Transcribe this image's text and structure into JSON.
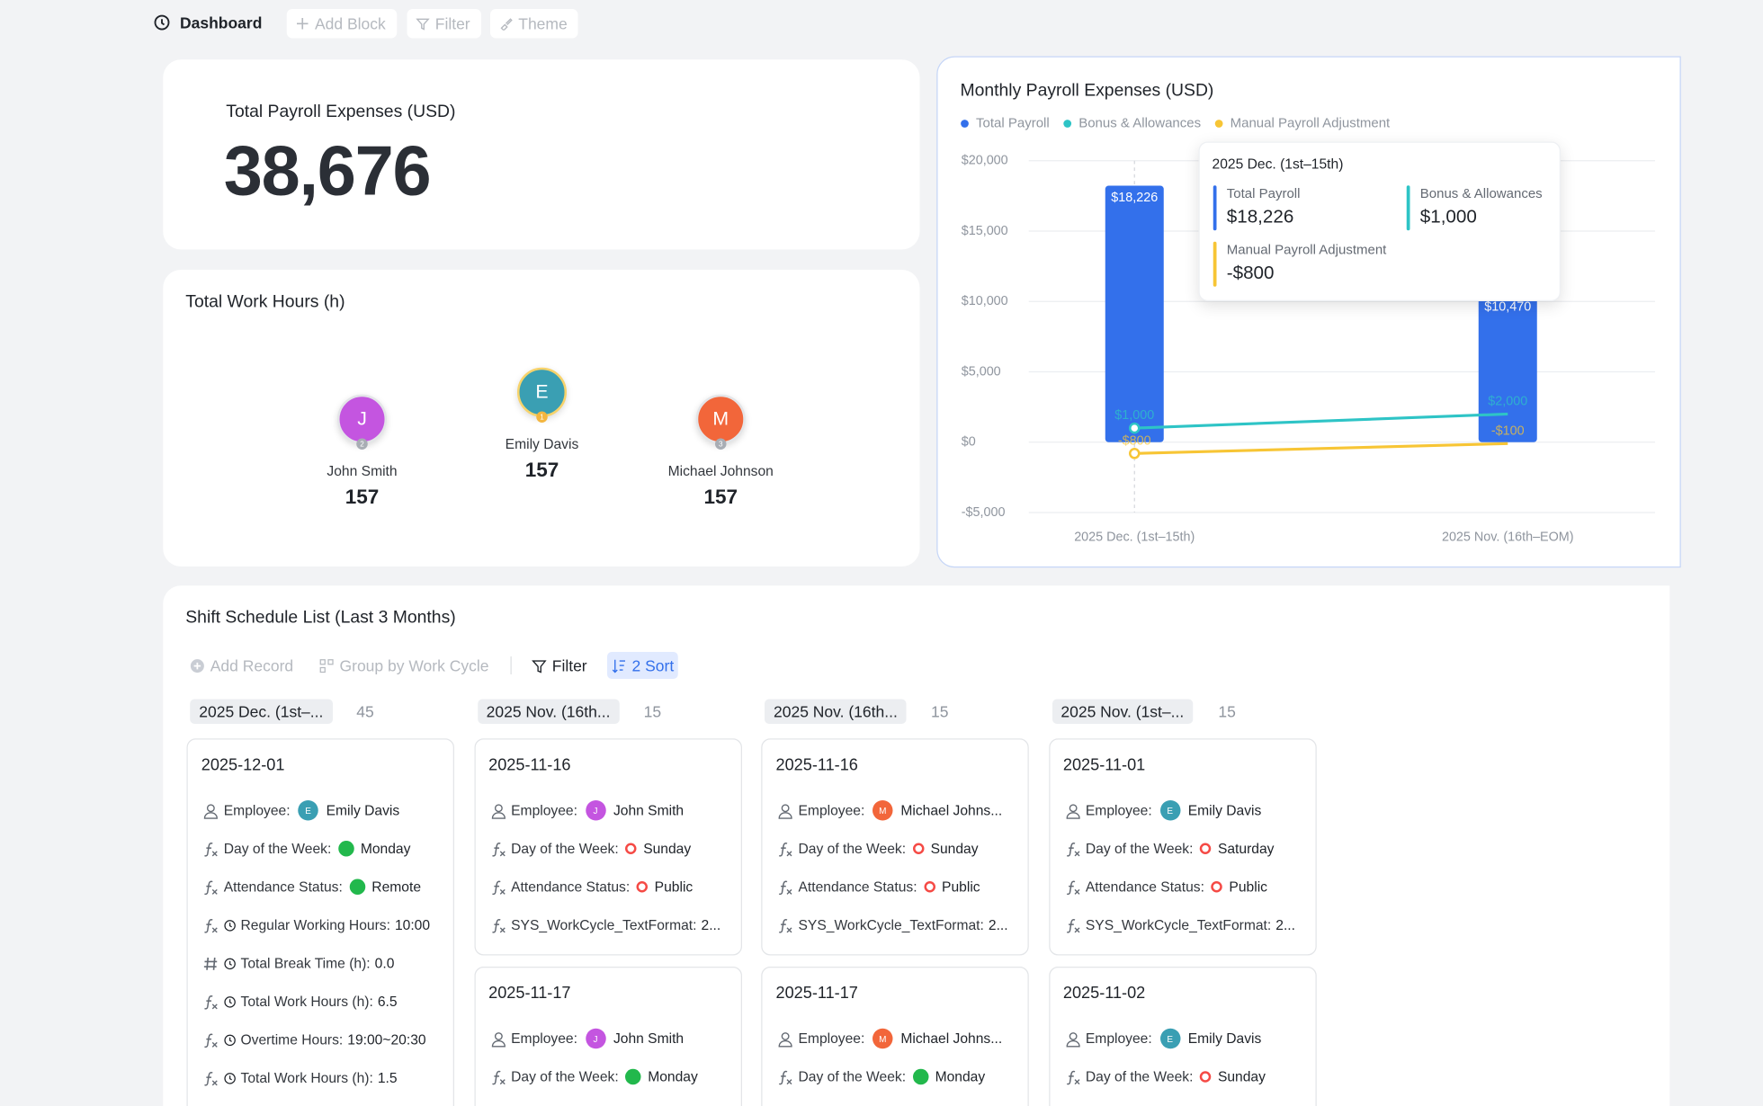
{
  "toolbar": {
    "title": "Dashboard",
    "buttons": [
      "Add Block",
      "Filter",
      "Theme"
    ]
  },
  "kpi": {
    "label": "Total Payroll Expenses (USD)",
    "value": "38,676"
  },
  "work_hours": {
    "title": "Total Work Hours (h)",
    "people": [
      {
        "initial": "J",
        "rank": "2",
        "name": "John Smith",
        "hours": 157,
        "color": "#c455e0"
      },
      {
        "initial": "E",
        "rank": "1",
        "name": "Emily Davis",
        "hours": 157,
        "color": "#3a9fb3"
      },
      {
        "initial": "M",
        "rank": "3",
        "name": "Michael Johnson",
        "hours": 157,
        "color": "#f2663a"
      }
    ]
  },
  "chart_data": {
    "type": "bar",
    "title": "Monthly Payroll Expenses (USD)",
    "categories": [
      "2025 Dec. (1st–15th)",
      "2025 Nov. (16th–EOM)"
    ],
    "series": [
      {
        "name": "Total Payroll",
        "type": "bar",
        "color": "#3370eb",
        "values": [
          18226,
          10470
        ],
        "value_labels": [
          "$18,226",
          "$10,470"
        ]
      },
      {
        "name": "Bonus & Allowances",
        "type": "line",
        "color": "#2ec4c6",
        "values": [
          1000,
          2000
        ],
        "value_labels": [
          "$1,000",
          "$2,000"
        ]
      },
      {
        "name": "Manual Payroll Adjustment",
        "type": "line",
        "color": "#f7c535",
        "values": [
          -800,
          -100
        ],
        "value_labels": [
          "-$800",
          "-$100"
        ]
      }
    ],
    "ylim": [
      -5000,
      20000
    ],
    "yticks": [
      {
        "value": -5000,
        "label": "-$5,000"
      },
      {
        "value": 0,
        "label": "$0"
      },
      {
        "value": 5000,
        "label": "$5,000"
      },
      {
        "value": 10000,
        "label": "$10,000"
      },
      {
        "value": 15000,
        "label": "$15,000"
      },
      {
        "value": 20000,
        "label": "$20,000"
      }
    ],
    "grid": true,
    "legend": "top-left"
  },
  "schedule": {
    "title": "Shift Schedule List (Last 3 Months)",
    "toolbar": [
      "Add Record",
      "Group by Work Cycle",
      "Filter",
      "2 Sort"
    ],
    "groups": [
      {
        "label": "2025 Dec. (1st–...",
        "count": 45,
        "cards": [
          {
            "date": "2025-12-01",
            "fields": [
              {
                "icon": "person",
                "label": "Employee:",
                "avatar": "E",
                "avatar_color": "#3a9fb3",
                "value": "Emily Davis"
              },
              {
                "icon": "fx",
                "label": "Day of the Week:",
                "dot": "#22b84c",
                "dot_filled": true,
                "value": "Monday"
              },
              {
                "icon": "fx",
                "label": "Attendance Status:",
                "dot": "#22b84c",
                "dot_filled": true,
                "value": "Remote"
              },
              {
                "icon": "fx",
                "clock": true,
                "label": "Regular Working Hours:",
                "value": "10:00"
              },
              {
                "icon": "hash",
                "clock": true,
                "label": "Total Break Time (h):",
                "value": "0.0"
              },
              {
                "icon": "fx",
                "clock": true,
                "label": "Total Work Hours (h):",
                "value": "6.5"
              },
              {
                "icon": "fx",
                "clock": true,
                "label": "Overtime Hours:",
                "value": "19:00~20:30"
              },
              {
                "icon": "fx",
                "clock": true,
                "label": "Total Work Hours (h):",
                "value": "1.5"
              }
            ]
          }
        ]
      },
      {
        "label": "2025 Nov. (16th...",
        "count": 15,
        "cards": [
          {
            "date": "2025-11-16",
            "fields": [
              {
                "icon": "person",
                "label": "Employee:",
                "avatar": "J",
                "avatar_color": "#c455e0",
                "value": "John Smith"
              },
              {
                "icon": "fx",
                "label": "Day of the Week:",
                "dot": "#f54a45",
                "dot_filled": false,
                "value": "Sunday"
              },
              {
                "icon": "fx",
                "label": "Attendance Status:",
                "dot": "#f54a45",
                "dot_filled": false,
                "value": "Public"
              },
              {
                "icon": "fx",
                "label": "SYS_WorkCycle_TextFormat:",
                "value": "2..."
              }
            ]
          },
          {
            "date": "2025-11-17",
            "fields": [
              {
                "icon": "person",
                "label": "Employee:",
                "avatar": "J",
                "avatar_color": "#c455e0",
                "value": "John Smith"
              },
              {
                "icon": "fx",
                "label": "Day of the Week:",
                "dot": "#22b84c",
                "dot_filled": true,
                "value": "Monday"
              }
            ]
          }
        ]
      },
      {
        "label": "2025 Nov. (16th...",
        "count": 15,
        "cards": [
          {
            "date": "2025-11-16",
            "fields": [
              {
                "icon": "person",
                "label": "Employee:",
                "avatar": "M",
                "avatar_color": "#f2663a",
                "value": "Michael Johns..."
              },
              {
                "icon": "fx",
                "label": "Day of the Week:",
                "dot": "#f54a45",
                "dot_filled": false,
                "value": "Sunday"
              },
              {
                "icon": "fx",
                "label": "Attendance Status:",
                "dot": "#f54a45",
                "dot_filled": false,
                "value": "Public"
              },
              {
                "icon": "fx",
                "label": "SYS_WorkCycle_TextFormat:",
                "value": "2..."
              }
            ]
          },
          {
            "date": "2025-11-17",
            "fields": [
              {
                "icon": "person",
                "label": "Employee:",
                "avatar": "M",
                "avatar_color": "#f2663a",
                "value": "Michael Johns..."
              },
              {
                "icon": "fx",
                "label": "Day of the Week:",
                "dot": "#22b84c",
                "dot_filled": true,
                "value": "Monday"
              }
            ]
          }
        ]
      },
      {
        "label": "2025 Nov. (1st–...",
        "count": 15,
        "cards": [
          {
            "date": "2025-11-01",
            "fields": [
              {
                "icon": "person",
                "label": "Employee:",
                "avatar": "E",
                "avatar_color": "#3a9fb3",
                "value": "Emily Davis"
              },
              {
                "icon": "fx",
                "label": "Day of the Week:",
                "dot": "#f54a45",
                "dot_filled": false,
                "value": "Saturday"
              },
              {
                "icon": "fx",
                "label": "Attendance Status:",
                "dot": "#f54a45",
                "dot_filled": false,
                "value": "Public"
              },
              {
                "icon": "fx",
                "label": "SYS_WorkCycle_TextFormat:",
                "value": "2..."
              }
            ]
          },
          {
            "date": "2025-11-02",
            "fields": [
              {
                "icon": "person",
                "label": "Employee:",
                "avatar": "E",
                "avatar_color": "#3a9fb3",
                "value": "Emily Davis"
              },
              {
                "icon": "fx",
                "label": "Day of the Week:",
                "dot": "#f54a45",
                "dot_filled": false,
                "value": "Sunday"
              }
            ]
          }
        ]
      }
    ]
  }
}
